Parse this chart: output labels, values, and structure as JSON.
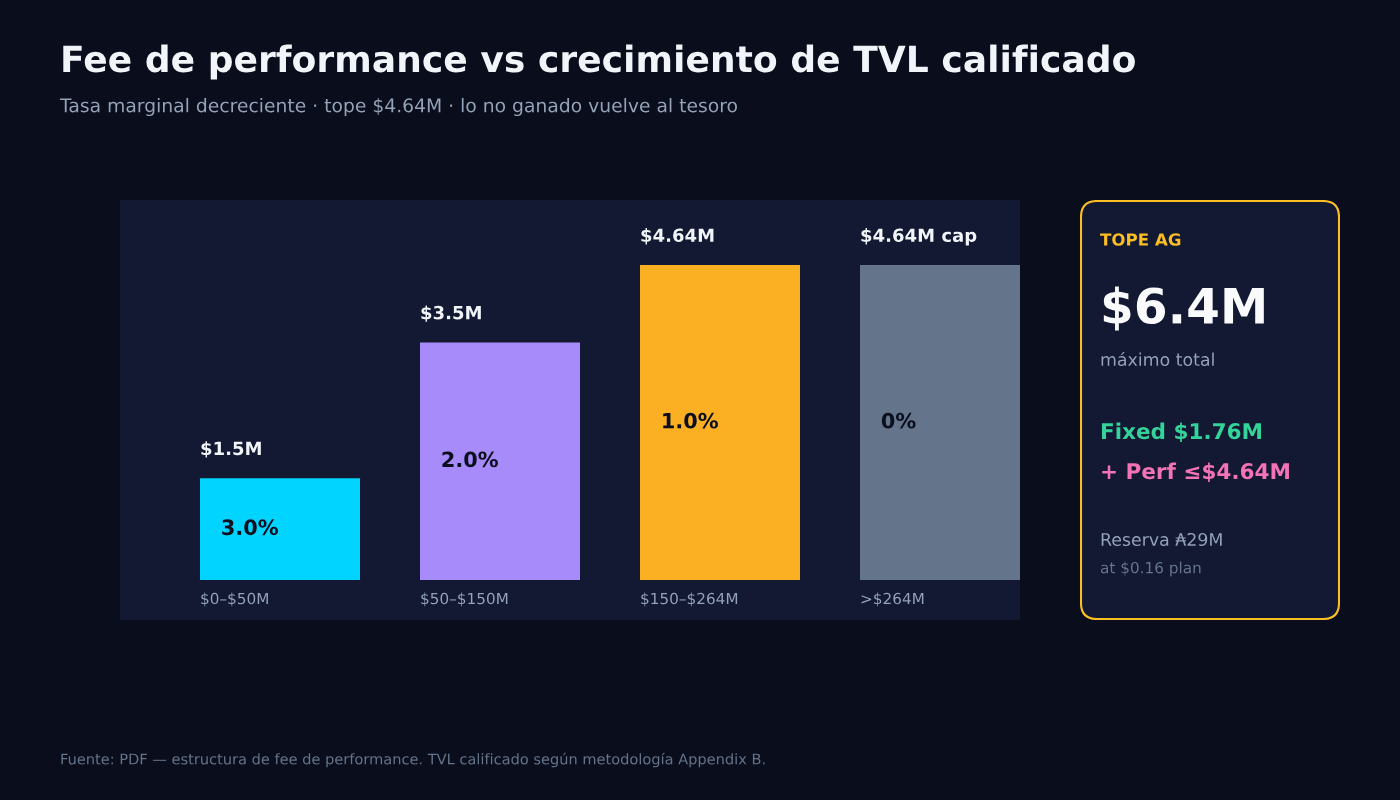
{
  "chart_data": [
    {
      "type": "bar",
      "title": "Fee de performance vs crecimiento de TVL calificado",
      "subtitle": "Tasa marginal decreciente · tope $4.64M · lo no ganado vuelve al tesoro",
      "categories": [
        "$0–$50M",
        "$50–$150M",
        "$150–$264M",
        ">$264M"
      ],
      "values": [
        1.5,
        3.5,
        4.64,
        4.64
      ],
      "colors": [
        "#00d4ff",
        "#a78bfa",
        "#fbb024",
        "#64748b"
      ],
      "value_labels": [
        "$1.5M",
        "$3.5M",
        "$4.64M",
        "$4.64M cap"
      ],
      "annotations": [
        "3.0%",
        "2.0%",
        "1.0%",
        "0%",
        "Fuente: PDF — estructura de fee de performance. TVL calificado según metodología Appendix B."
      ]
    },
    {
      "type": "other",
      "title": "TOPE AG",
      "annotations": [
        "$6.4M",
        "máximo total",
        "Fixed $1.76M",
        "+ Perf ≤$4.64M",
        "Reserva ₳29M",
        "at $0.16 plan"
      ]
    }
  ]
}
